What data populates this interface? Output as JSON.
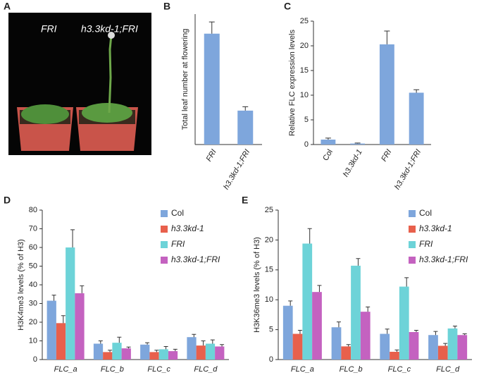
{
  "photo": {
    "panel": "A",
    "labels": [
      "FRI",
      "h3.3kd-1;FRI"
    ]
  },
  "chart_data": [
    {
      "type": "bar",
      "panel": "B",
      "ylabel": "Total leaf number at flowering",
      "categories": [
        "FRI",
        "h3.3kd-1;FRI"
      ],
      "values": [
        85,
        26
      ],
      "errors": [
        9,
        3
      ],
      "color": "#7ea6dc",
      "ylim": [
        0,
        100
      ]
    },
    {
      "type": "bar",
      "panel": "C",
      "ylabel": "Relative FLC expression levels",
      "categories": [
        "Col",
        "h3.3kd-1",
        "FRI",
        "h3.3kd-1;FRI"
      ],
      "values": [
        1.0,
        0.2,
        20.3,
        10.5
      ],
      "errors": [
        0.3,
        0.1,
        2.7,
        0.6
      ],
      "color": "#7ea6dc",
      "ylim": [
        0,
        25
      ],
      "yticks": [
        0,
        5,
        10,
        15,
        20,
        25
      ]
    },
    {
      "type": "grouped_bar",
      "panel": "D",
      "ylabel": "H3K4me3 levels (% of H3)",
      "categories": [
        "FLC_a",
        "FLC_b",
        "FLC_c",
        "FLC_d"
      ],
      "series": [
        {
          "name": "Col",
          "color": "#7ea6dc",
          "values": [
            31.5,
            8.5,
            8,
            12
          ],
          "errors": [
            3,
            1.5,
            1,
            1.5
          ]
        },
        {
          "name": "h3.3kd-1",
          "color": "#e8604c",
          "values": [
            19.5,
            4,
            4,
            7.5
          ],
          "errors": [
            4,
            1,
            1,
            2.5
          ]
        },
        {
          "name": "FRI",
          "color": "#6dd3d8",
          "values": [
            60,
            9,
            5.5,
            8.5
          ],
          "errors": [
            9.5,
            3,
            1.5,
            2
          ]
        },
        {
          "name": "h3.3kd-1;FRI",
          "color": "#c462c0",
          "values": [
            35.5,
            6,
            4.5,
            7
          ],
          "errors": [
            4,
            0.7,
            1,
            1
          ]
        }
      ],
      "ylim": [
        0,
        80
      ],
      "yticks": [
        0,
        10,
        20,
        30,
        40,
        50,
        60,
        70,
        80
      ],
      "legend": "top-right"
    },
    {
      "type": "grouped_bar",
      "panel": "E",
      "ylabel": "H3K36me3 levels (% of H3)",
      "categories": [
        "FLC_a",
        "FLC_b",
        "FLC_c",
        "FLC_d"
      ],
      "series": [
        {
          "name": "Col",
          "color": "#7ea6dc",
          "values": [
            9,
            5.4,
            4.3,
            4.1
          ],
          "errors": [
            0.8,
            0.9,
            0.8,
            0.6
          ]
        },
        {
          "name": "h3.3kd-1",
          "color": "#e8604c",
          "values": [
            4.3,
            2.2,
            1.3,
            2.3
          ],
          "errors": [
            0.6,
            0.3,
            0.3,
            0.4
          ]
        },
        {
          "name": "FRI",
          "color": "#6dd3d8",
          "values": [
            19.4,
            15.7,
            12.2,
            5.2
          ],
          "errors": [
            2.5,
            1.2,
            1.5,
            0.4
          ]
        },
        {
          "name": "h3.3kd-1;FRI",
          "color": "#c462c0",
          "values": [
            11.3,
            8,
            4.6,
            4.1
          ],
          "errors": [
            1.1,
            0.8,
            0.3,
            0.2
          ]
        }
      ],
      "ylim": [
        0,
        25
      ],
      "yticks": [
        0,
        5,
        10,
        15,
        20,
        25
      ],
      "legend": "top-right"
    }
  ]
}
